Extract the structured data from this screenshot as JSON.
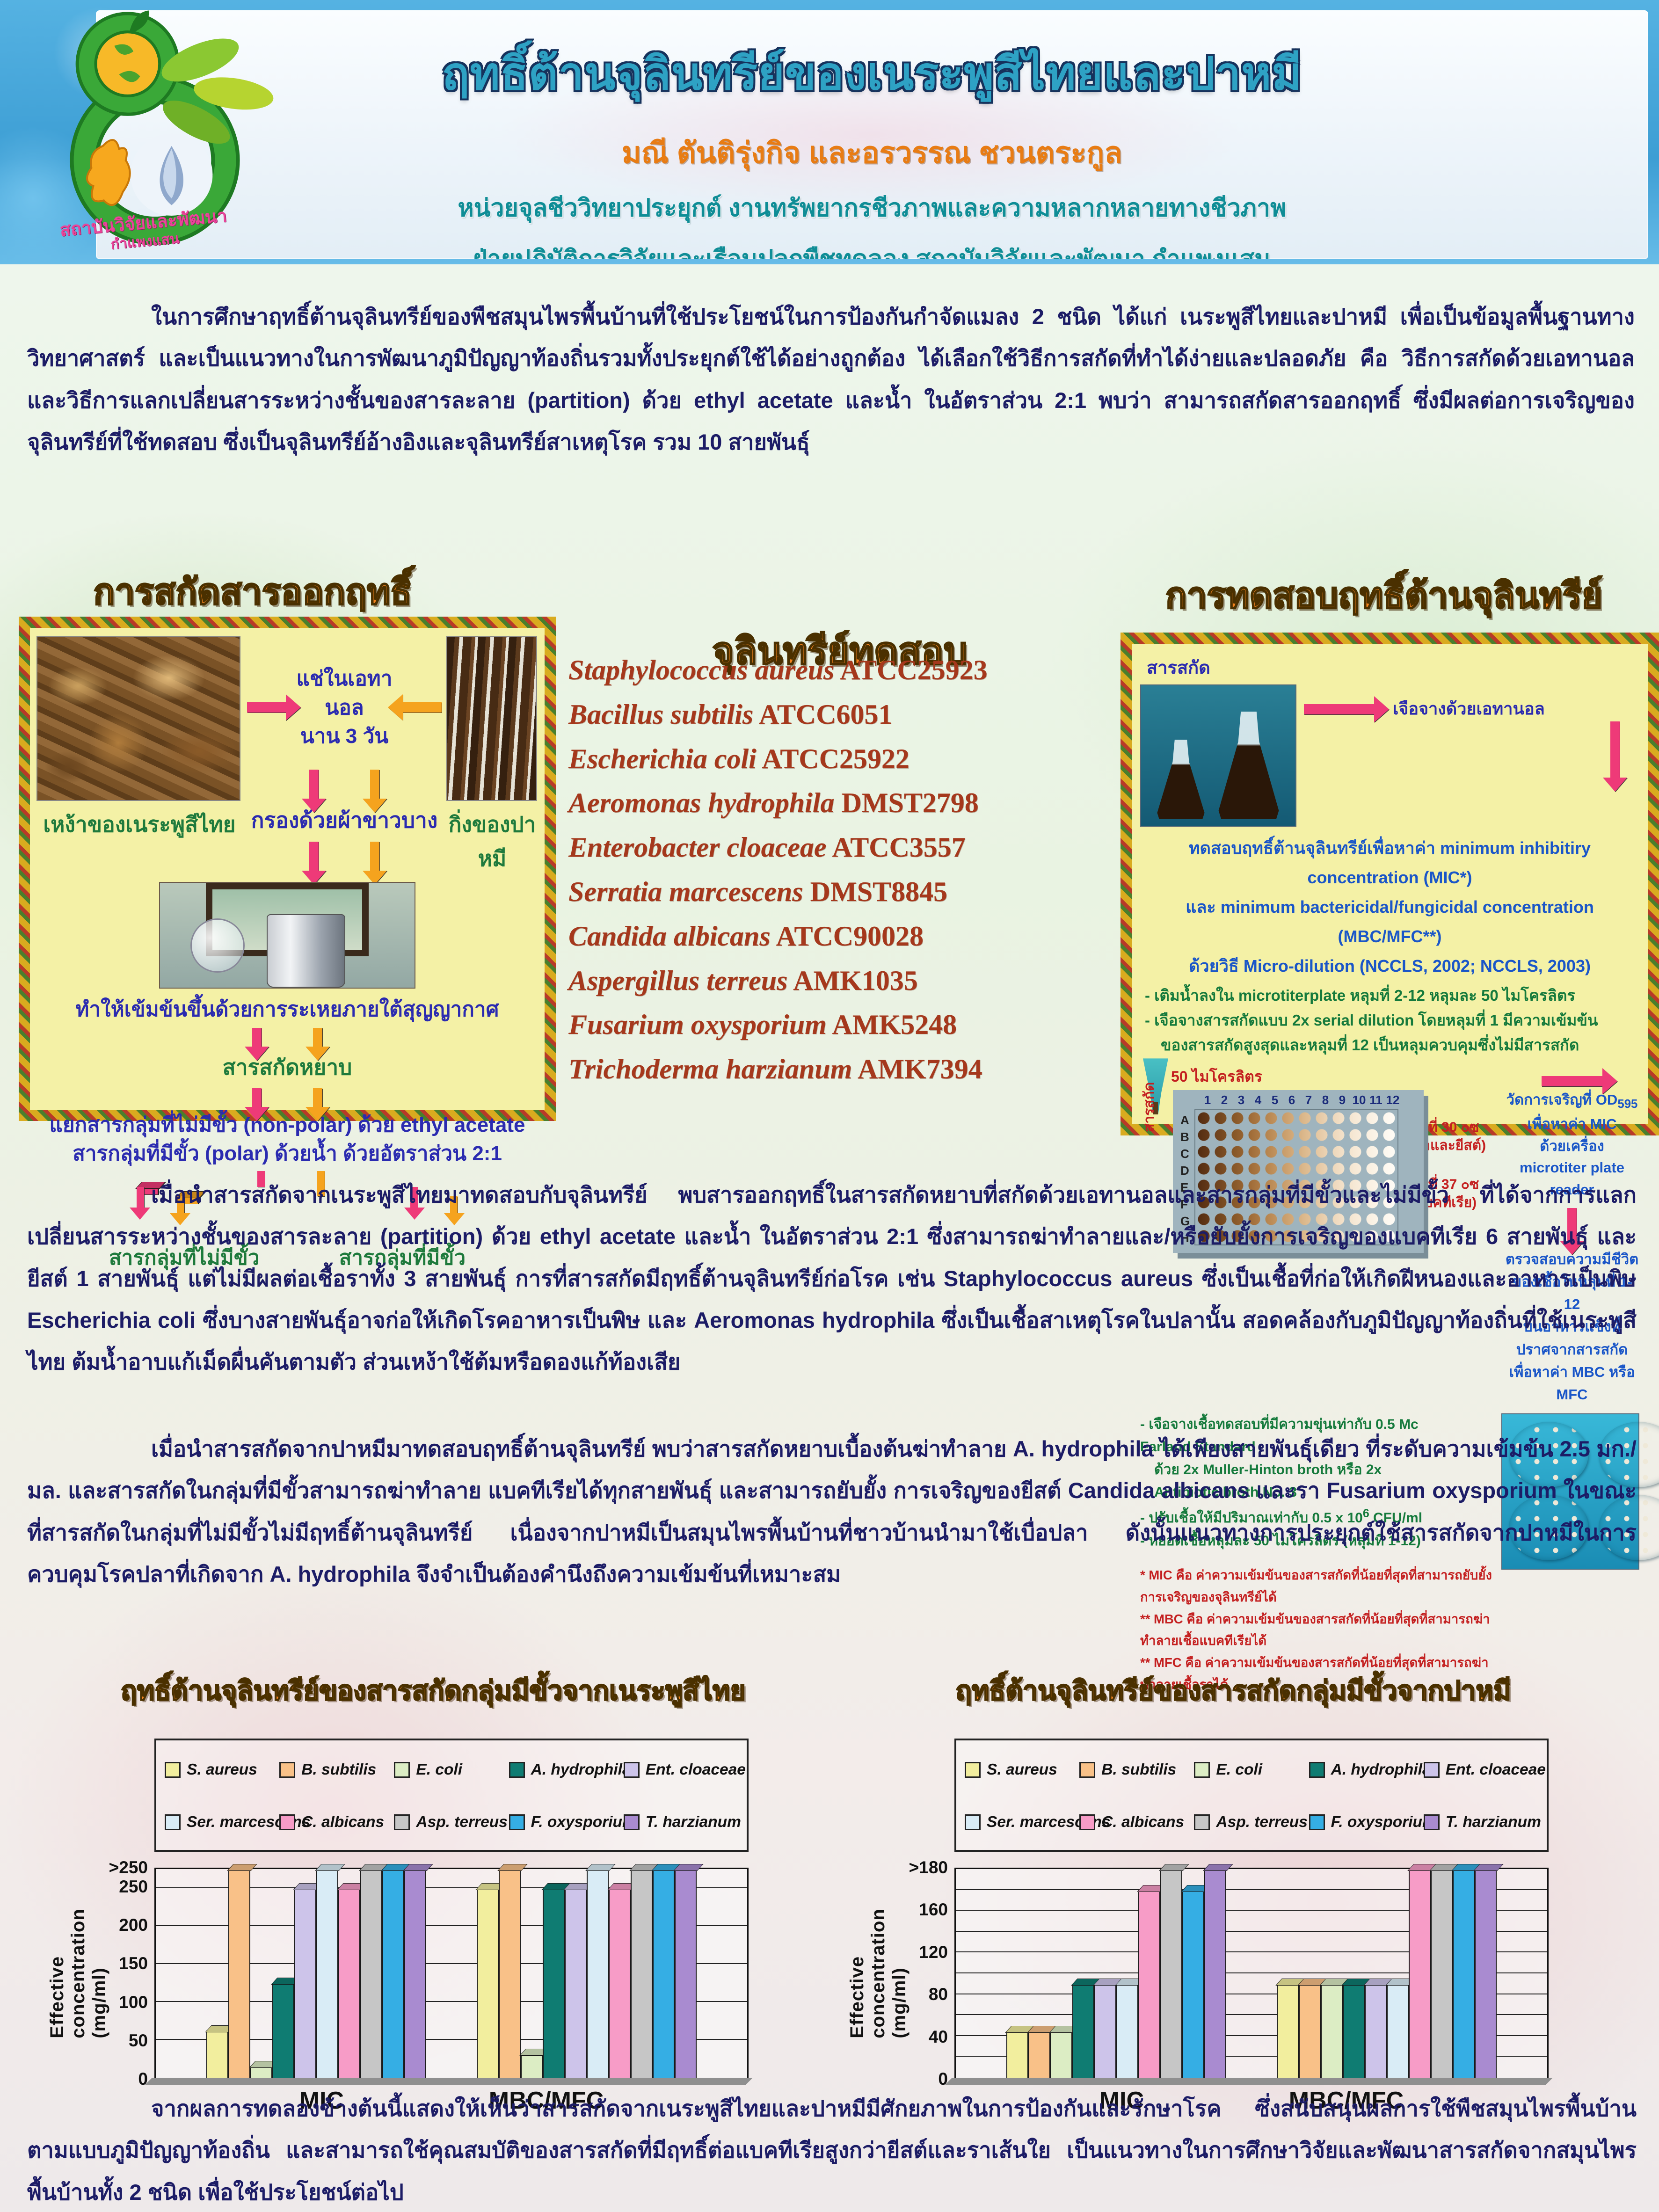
{
  "header": {
    "title": "ฤทธิ์ต้านจุลินทรีย์ของเนระพูสีไทยและปาหมี",
    "authors": "มณี ตันติรุ่งกิจ และอรวรรณ ชวนตระกูล",
    "affiliation1": "หน่วยจุลชีววิทยาประยุกต์ งานทรัพยากรชีวภาพและความหลากหลายทางชีวภาพ",
    "affiliation2": "ฝ่ายปฏิบัติการวิจัยและเรือนปลูกพืชทดลอง สถาบันวิจัยและพัฒนา กำแพงแสน",
    "logo_line1": "สถาบันวิจัยและพัฒนา",
    "logo_line2": "กำแพงแสน"
  },
  "intro": "ในการศึกษาฤทธิ์ต้านจุลินทรีย์ของพืชสมุนไพรพื้นบ้านที่ใช้ประโยชน์ในการป้องกันกำจัดแมลง 2 ชนิด ได้แก่ เนระพูสีไทยและปาหมี เพื่อเป็นข้อมูลพื้นฐานทางวิทยาศาสตร์ และเป็นแนวทางในการพัฒนาภูมิปัญญาท้องถิ่นรวมทั้งประยุกต์ใช้ได้อย่างถูกต้อง ได้เลือกใช้วิธีการสกัดที่ทำได้ง่ายและปลอดภัย คือ วิธีการสกัดด้วยเอทานอล และวิธีการแลกเปลี่ยนสารระหว่างชั้นของสารละลาย (partition) ด้วย ethyl acetate และน้ำ ในอัตราส่วน 2:1 พบว่า สามารถสกัดสารออกฤทธิ์ ซึ่งมีผลต่อการเจริญของจุลินทรีย์ที่ใช้ทดสอบ ซึ่งเป็นจุลินทรีย์อ้างอิงและจุลินทรีย์สาเหตุโรค รวม 10 สายพันธุ์",
  "extraction": {
    "title": "การสกัดสารออกฤทธิ์",
    "caption_left": "เหง้าของเนระพูสีไทย",
    "caption_right": "กิ่งของปาหมี",
    "soak1": "แช่ในเอทานอล",
    "soak2": "นาน 3 วัน",
    "filter": "กรองด้วยผ้าขาวบาง",
    "concentrate": "ทำให้เข้มข้นขึ้นด้วยการระเหยภายใต้สุญญากาศ",
    "crude": "สารสกัดหยาบ",
    "partition1": "แยกสารกลุ่มที่ไม่มีขั้ว (non-polar) ด้วย ethyl acetate",
    "partition2": "สารกลุ่มที่มีขั้ว (polar) ด้วยน้ำ ด้วยอัตราส่วน 2:1",
    "nonpolar": "สารกลุ่มที่ไม่มีขั้ว",
    "polar": "สารกลุ่มที่มีขั้ว"
  },
  "test_microbes": {
    "title": "จุลินทรีย์ทดสอบ",
    "items": [
      {
        "species": "Staphylococcus aureus",
        "code": "ATCC25923"
      },
      {
        "species": "Bacillus subtilis",
        "code": "ATCC6051"
      },
      {
        "species": "Escherichia coli",
        "code": "ATCC25922"
      },
      {
        "species": "Aeromonas hydrophila",
        "code": "DMST2798"
      },
      {
        "species": "Enterobacter cloaceae",
        "code": "ATCC3557"
      },
      {
        "species": "Serratia marcescens",
        "code": "DMST8845"
      },
      {
        "species": "Candida albicans",
        "code": "ATCC90028"
      },
      {
        "species": "Aspergillus terreus",
        "code": "AMK1035"
      },
      {
        "species": "Fusarium oxysporium",
        "code": "AMK5248"
      },
      {
        "species": "Trichoderma harzianum",
        "code": "AMK7394"
      }
    ]
  },
  "testing": {
    "title": "การทดสอบฤทธิ์ต้านจุลินทรีย์",
    "extract_label": "สารสกัด",
    "dilute_ethanol": "เจือจางด้วยเอทานอล",
    "mic_line1": "ทดสอบฤทธิ์ต้านจุลินทรีย์เพื่อหาค่า minimum inhibitiry concentration (MIC*)",
    "mic_line2": "และ minimum bactericidal/fungicidal concentration (MBC/MFC**)",
    "mic_line3": "ด้วยวิธี Micro-dilution (NCCLS, 2002; NCCLS, 2003)",
    "step1": "- เติมน้ำลงใน microtiterplate หลุมที่ 2-12 หลุมละ 50 ไมโครลิตร",
    "step2": "- เจือจางสารสกัดแบบ 2x serial dilution โดยหลุมที่ 1 มีความเข้มข้น",
    "step2b": "ของสารสกัดสูงสุดและหลุมที่ 12 เป็นหลุมควบคุมซึ่งไม่มีสารสกัด",
    "pipette_label": "50 ไมโครลิตร",
    "plate_extract_label": "สารสกัด",
    "plate_columns": [
      "1",
      "2",
      "3",
      "4",
      "5",
      "6",
      "7",
      "8",
      "9",
      "10",
      "11",
      "12"
    ],
    "plate_rows": [
      "A",
      "B",
      "C",
      "D",
      "E",
      "F",
      "G",
      "H"
    ],
    "incubate1a": "บ่มที่ 30 ๐ซ",
    "incubate1b": "(ราและยีสต์)",
    "incubate2a": "บ่มที่ 37 ๐ซ",
    "incubate2b": "(แบคทีเรีย)",
    "od1a": "วัดการเจริญที่ OD",
    "od_sub": "595",
    "od1b": " เพื่อหาค่า MIC",
    "od2": "ด้วยเครื่อง microtiter plate reader",
    "viability1": "ตรวจสอบความมีชีวิตของเชื้อในหลุมที่ 1-12",
    "viability2": "บนอาหารแข็งที่ปราศจากสารสกัด",
    "viability3": "เพื่อหาค่า MBC หรือ MFC",
    "inoc1": "- เจือจางเชื้อทดสอบที่มีความขุ่นเท่ากับ 0.5 Mc Farland Standard",
    "inoc1b": "ด้วย 2x Muller-Hinton broth หรือ 2x Antibiotic broth No. 3",
    "inoc2a": "- ปรับเชื้อให้มีปริมาณเท่ากับ 0.5 x 10",
    "inoc2sup": "6",
    "inoc2b": " CFU/ml",
    "inoc3": "- หยอดเชื้อหลุมละ 50 ไมโครลิตร (หลุมที่ 1-12)",
    "footnote1": "* MIC คือ ค่าความเข้มข้นของสารสกัดที่น้อยที่สุดที่สามารถยับยั้งการเจริญของจุลินทรีย์ได้",
    "footnote2": "** MBC คือ ค่าความเข้มข้นของสารสกัดที่น้อยที่สุดที่สามารถฆ่าทำลายเชื้อแบคทีเรียได้",
    "footnote3": "** MFC คือ ค่าความเข้มข้นของสารสกัดที่น้อยที่สุดที่สามารถฆ่าทำลายเชื้อราได้"
  },
  "body1": "เมื่อนำสารสกัดจากเนระพูสีไทยมาทดสอบกับจุลินทรีย์ พบสารออกฤทธิ์ในสารสกัดหยาบที่สกัดด้วยเอทานอลและสารกลุ่มที่มีขั้วและไม่มีขั้ว ที่ได้จากการแลกเปลี่ยนสารระหว่างชั้นของสารละลาย (partition) ด้วย ethyl acetate และน้ำ ในอัตราส่วน 2:1 ซึ่งสามารถฆ่าทำลายและ/หรือยับยั้งการเจริญของแบคทีเรีย 6 สายพันธุ์ และยีสต์ 1 สายพันธุ์ แต่ไม่มีผลต่อเชื้อราทั้ง 3 สายพันธุ์ การที่สารสกัดมีฤทธิ์ต้านจุลินทรีย์ก่อโรค เช่น Staphylococcus aureus ซึ่งเป็นเชื้อที่ก่อให้เกิดฝีหนองและอาหารเป็นพิษ Escherichia coli ซึ่งบางสายพันธุ์อาจก่อให้เกิดโรคอาหารเป็นพิษ และ Aeromonas hydrophila ซึ่งเป็นเชื้อสาเหตุโรคในปลานั้น สอดคล้องกับภูมิปัญญาท้องถิ่นที่ใช้เนระพูสีไทย ต้มน้ำอาบแก้เม็ดผื่นคันตามตัว ส่วนเหง้าใช้ต้มหรือดองแก้ท้องเสีย",
  "body2": "เมื่อนำสารสกัดจากปาหมีมาทดสอบฤทธิ์ต้านจุลินทรีย์ พบว่าสารสกัดหยาบเบื้องต้นฆ่าทำลาย A. hydrophila ได้เพียงสายพันธุ์เดียว ที่ระดับความเข้มข้น 2.5 มก./มล. และสารสกัดในกลุ่มที่มีขั้วสามารถฆ่าทำลาย แบคทีเรียได้ทุกสายพันธุ์ และสามารถยับยั้ง การเจริญของยีสต์ Candida albicans และรา Fusarium oxysporium ในขณะที่สารสกัดในกลุ่มที่ไม่มีขั้วไม่มีฤทธิ์ต้านจุลินทรีย์ เนื่องจากปาหมีเป็นสมุนไพรพื้นบ้านที่ชาวบ้านนำมาใช้เบื่อปลา ดังนั้นแนวทางการประยุกต์ใช้สารสกัดจากปาหมีในการควบคุมโรคปลาที่เกิดจาก A. hydrophila จึงจำเป็นต้องคำนึงถึงความเข้มข้นที่เหมาะสม",
  "conclusion": "จากผลการทดลองข้างต้นนี้แสดงให้เห็นว่าสารสกัดจากเนระพูสีไทยและปาหมีมีศักยภาพในการป้องกันและรักษาโรค ซึ่งสนับสนุนผลการใช้พืชสมุนไพรพื้นบ้านตามแบบภูมิปัญญาท้องถิ่น และสามารถใช้คุณสมบัติของสารสกัดที่มีฤทธิ์ต่อแบคทีเรียสูงกว่ายีสต์และราเส้นใย เป็นแนวทางในการศึกษาวิจัยและพัฒนาสารสกัดจากสมุนไพรพื้นบ้านทั้ง 2 ชนิด เพื่อใช้ประโยชน์ต่อไป",
  "chart_data": [
    {
      "type": "bar",
      "title": "ฤทธิ์ต้านจุลินทรีย์ของสารสกัดกลุ่มมีขั้วจากเนระพูสีไทย",
      "ylabel": "Effective concentration (mg/ml)",
      "categories": [
        "MIC",
        "MBC/MFC"
      ],
      "ytick_labels": [
        ">250",
        "250",
        "200",
        "150",
        "100",
        "50",
        "0"
      ],
      "ytick_values": [
        275,
        250,
        200,
        150,
        100,
        50,
        0
      ],
      "gridlines": [
        50,
        100,
        150,
        200,
        250
      ],
      "ymax_plot": 275,
      "legend_position": "top",
      "grid": true,
      "series": [
        {
          "name": "S. aureus",
          "color": "#f2ee9e",
          "values": [
            62.5,
            250
          ]
        },
        {
          "name": "B. subtilis",
          "color": "#f9c188",
          "values": [
            ">250",
            ">250"
          ]
        },
        {
          "name": "E. coli",
          "color": "#dcedc4",
          "values": [
            15.6,
            31.2
          ]
        },
        {
          "name": "A. hydrophila",
          "color": "#0f7c72",
          "values": [
            125,
            250
          ]
        },
        {
          "name": "Ent. cloaceae",
          "color": "#cdc4ea",
          "values": [
            250,
            250
          ]
        },
        {
          "name": "Ser. marcescens",
          "color": "#d9ecf6",
          "values": [
            ">250",
            ">250"
          ]
        },
        {
          "name": "C. albicans",
          "color": "#f79cc7",
          "values": [
            250,
            250
          ]
        },
        {
          "name": "Asp. terreus",
          "color": "#c6c6c6",
          "values": [
            ">250",
            ">250"
          ]
        },
        {
          "name": "F. oxysporium",
          "color": "#35aee4",
          "values": [
            ">250",
            ">250"
          ]
        },
        {
          "name": "T. harzianum",
          "color": "#a98bd0",
          "values": [
            ">250",
            ">250"
          ]
        }
      ]
    },
    {
      "type": "bar",
      "title": "ฤทธิ์ต้านจุลินทรีย์ของสารสกัดกลุ่มมีขั้วจากปาหมี",
      "ylabel": "Effective concentration (mg/ml)",
      "categories": [
        "MIC",
        "MBC/MFC"
      ],
      "ytick_labels": [
        ">180",
        "160",
        "120",
        "80",
        "40",
        "0"
      ],
      "ytick_values": [
        200,
        160,
        120,
        80,
        40,
        0
      ],
      "gridlines": [
        20,
        40,
        60,
        80,
        100,
        120,
        140,
        160,
        180
      ],
      "ymax_plot": 200,
      "legend_position": "top",
      "grid": true,
      "series": [
        {
          "name": "S. aureus",
          "color": "#f2ee9e",
          "values": [
            45,
            90
          ]
        },
        {
          "name": "B. subtilis",
          "color": "#f9c188",
          "values": [
            45,
            90
          ]
        },
        {
          "name": "E. coli",
          "color": "#dcedc4",
          "values": [
            45,
            90
          ]
        },
        {
          "name": "A. hydrophila",
          "color": "#0f7c72",
          "values": [
            90,
            90
          ]
        },
        {
          "name": "Ent. cloaceae",
          "color": "#cdc4ea",
          "values": [
            90,
            90
          ]
        },
        {
          "name": "Ser. marcescens",
          "color": "#d9ecf6",
          "values": [
            90,
            90
          ]
        },
        {
          "name": "C. albicans",
          "color": "#f79cc7",
          "values": [
            180,
            ">180"
          ]
        },
        {
          "name": "Asp. terreus",
          "color": "#c6c6c6",
          "values": [
            ">180",
            ">180"
          ]
        },
        {
          "name": "F. oxysporium",
          "color": "#35aee4",
          "values": [
            180,
            ">180"
          ]
        },
        {
          "name": "T. harzianum",
          "color": "#a98bd0",
          "values": [
            ">180",
            ">180"
          ]
        }
      ]
    }
  ]
}
